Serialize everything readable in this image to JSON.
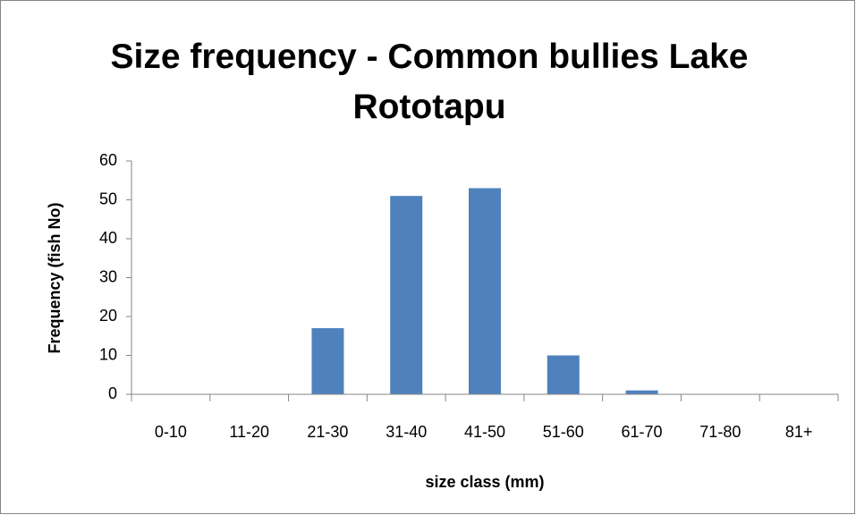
{
  "chart_data": {
    "type": "bar",
    "title": "Size frequency - Common bullies Lake Rototapu",
    "x_label": "size class (mm)",
    "y_label": "Frequency (fish No)",
    "categories": [
      "0-10",
      "11-20",
      "21-30",
      "31-40",
      "41-50",
      "51-60",
      "61-70",
      "71-80",
      "81+"
    ],
    "values": [
      0,
      0,
      17,
      51,
      53,
      10,
      1,
      0,
      0
    ],
    "color": "#4f81bd",
    "ylim": [
      0,
      60
    ],
    "yticks": [
      0,
      10,
      20,
      30,
      40,
      50,
      60
    ],
    "grid": false
  }
}
